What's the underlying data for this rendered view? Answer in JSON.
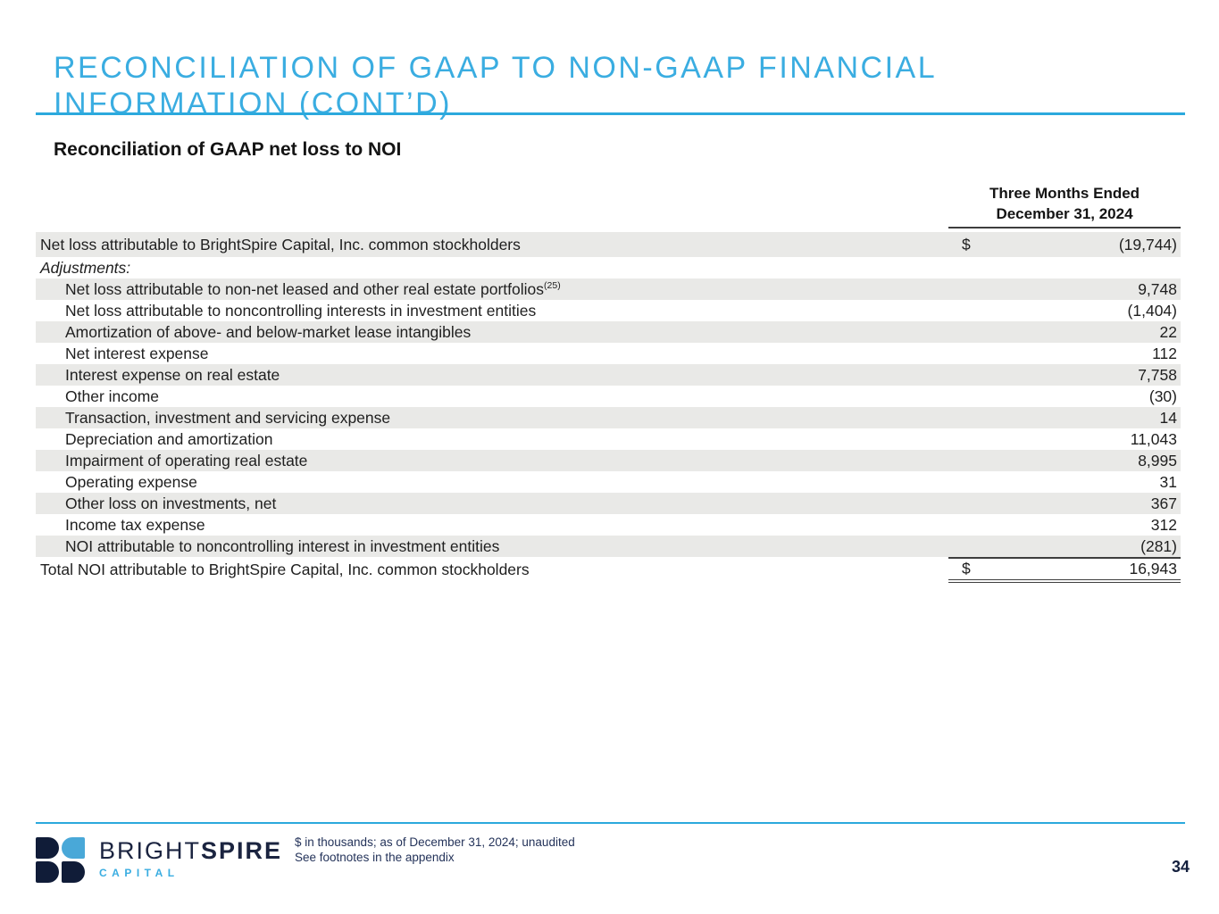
{
  "slide": {
    "title": "RECONCILIATION OF GAAP TO NON-GAAP FINANCIAL INFORMATION (CONT’D)",
    "subtitle": "Reconciliation of GAAP net loss to NOI",
    "page_number": "34"
  },
  "table": {
    "period_header_line1": "Three Months Ended",
    "period_header_line2": "December 31, 2024",
    "rows": [
      {
        "label": "Net loss attributable to BrightSpire Capital, Inc. common stockholders",
        "dollar": "$",
        "value": "(19,744)",
        "indent": false,
        "italic": false,
        "shaded": true,
        "total": false
      },
      {
        "label": "Adjustments:",
        "dollar": "",
        "value": "",
        "indent": false,
        "italic": true,
        "shaded": false,
        "total": false
      },
      {
        "label": "Net loss attributable to non-net leased and other real estate portfolios",
        "sup": "(25)",
        "dollar": "",
        "value": "9,748",
        "indent": true,
        "italic": false,
        "shaded": true,
        "total": false
      },
      {
        "label": "Net loss attributable to noncontrolling interests in investment entities",
        "dollar": "",
        "value": "(1,404)",
        "indent": true,
        "italic": false,
        "shaded": false,
        "total": false
      },
      {
        "label": "Amortization of above- and below-market lease intangibles",
        "dollar": "",
        "value": "22",
        "indent": true,
        "italic": false,
        "shaded": true,
        "total": false
      },
      {
        "label": "Net interest expense",
        "dollar": "",
        "value": "112",
        "indent": true,
        "italic": false,
        "shaded": false,
        "total": false
      },
      {
        "label": "Interest expense on real estate",
        "dollar": "",
        "value": "7,758",
        "indent": true,
        "italic": false,
        "shaded": true,
        "total": false
      },
      {
        "label": "Other income",
        "dollar": "",
        "value": "(30)",
        "indent": true,
        "italic": false,
        "shaded": false,
        "total": false
      },
      {
        "label": "Transaction, investment and servicing expense",
        "dollar": "",
        "value": "14",
        "indent": true,
        "italic": false,
        "shaded": true,
        "total": false
      },
      {
        "label": "Depreciation and amortization",
        "dollar": "",
        "value": "11,043",
        "indent": true,
        "italic": false,
        "shaded": false,
        "total": false
      },
      {
        "label": "Impairment of operating real estate",
        "dollar": "",
        "value": "8,995",
        "indent": true,
        "italic": false,
        "shaded": true,
        "total": false
      },
      {
        "label": "Operating expense",
        "dollar": "",
        "value": "31",
        "indent": true,
        "italic": false,
        "shaded": false,
        "total": false
      },
      {
        "label": "Other loss on investments, net",
        "dollar": "",
        "value": "367",
        "indent": true,
        "italic": false,
        "shaded": true,
        "total": false
      },
      {
        "label": "Income tax expense",
        "dollar": "",
        "value": "312",
        "indent": true,
        "italic": false,
        "shaded": false,
        "total": false
      },
      {
        "label": "NOI attributable to noncontrolling interest in investment entities",
        "dollar": "",
        "value": "(281)",
        "indent": true,
        "italic": false,
        "shaded": true,
        "total": false
      },
      {
        "label": "Total NOI attributable to BrightSpire Capital, Inc. common stockholders",
        "dollar": "$",
        "value": "16,943",
        "indent": false,
        "italic": false,
        "shaded": false,
        "total": true
      }
    ]
  },
  "footer": {
    "brand_part1": "BRIGHT",
    "brand_part2": "SPIRE",
    "brand_sub": "CAPITAL",
    "note_line1": "$ in thousands; as of December 31, 2024; unaudited",
    "note_line2": "See footnotes in the appendix"
  },
  "colors": {
    "accent_blue": "#2ba9dd",
    "title_blue": "#3aade1",
    "navy": "#1b2440",
    "row_shade_gray": "#e9e9e7"
  }
}
